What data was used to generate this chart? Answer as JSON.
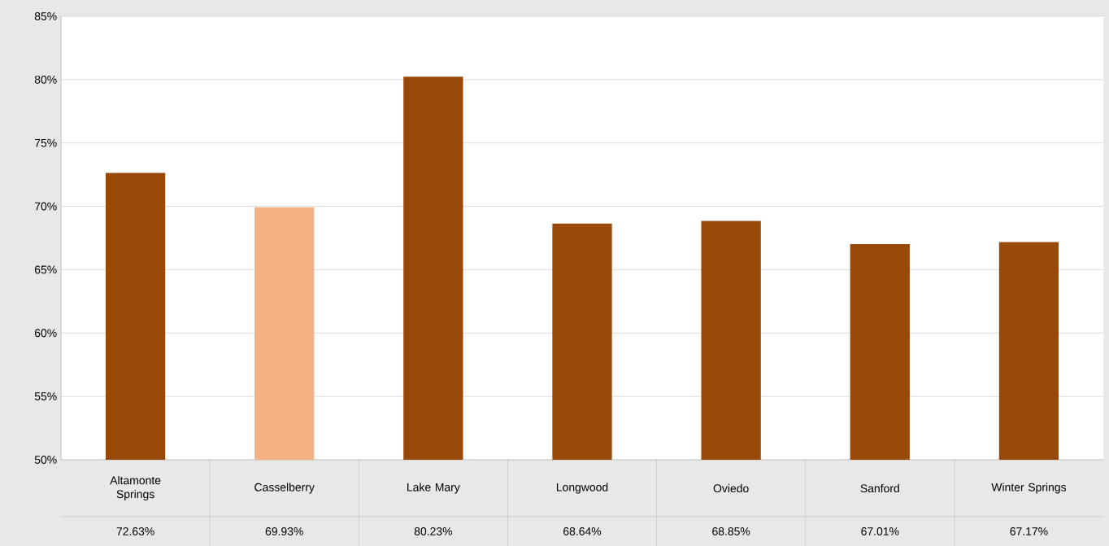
{
  "chart_data": {
    "type": "bar",
    "categories": [
      "Altamonte Springs",
      "Casselberry",
      "Lake Mary",
      "Longwood",
      "Oviedo",
      "Sanford",
      "Winter Springs"
    ],
    "values": [
      72.63,
      69.93,
      80.23,
      68.64,
      68.85,
      67.01,
      67.17
    ],
    "colors": [
      "#984807",
      "#f4b183",
      "#984807",
      "#984807",
      "#984807",
      "#984807",
      "#984807"
    ],
    "value_labels": [
      "72.63%",
      "69.93%",
      "80.23%",
      "68.64%",
      "68.85%",
      "67.01%",
      "67.17%"
    ],
    "ylim": [
      50,
      85
    ],
    "yticks": [
      {
        "value": 50,
        "label": "50%"
      },
      {
        "value": 55,
        "label": "55%"
      },
      {
        "value": 60,
        "label": "60%"
      },
      {
        "value": 65,
        "label": "65%"
      },
      {
        "value": 70,
        "label": "70%"
      },
      {
        "value": 75,
        "label": "75%"
      },
      {
        "value": 80,
        "label": "80%"
      },
      {
        "value": 85,
        "label": "85%"
      }
    ],
    "grid": "y"
  }
}
